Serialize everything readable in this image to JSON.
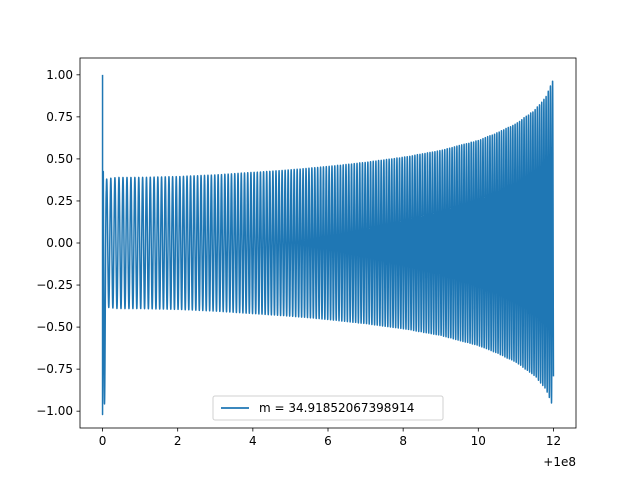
{
  "chart_data": {
    "type": "line",
    "title": "",
    "xlabel": "",
    "ylabel": "",
    "x_offset_label": "+1e8",
    "xlim": [
      -0.6,
      12.6
    ],
    "ylim": [
      -1.1,
      1.1
    ],
    "x_ticks": [
      0,
      2,
      4,
      6,
      8,
      10,
      12
    ],
    "x_tick_labels": [
      "0",
      "2",
      "4",
      "6",
      "8",
      "10",
      "12"
    ],
    "y_ticks": [
      -1.0,
      -0.75,
      -0.5,
      -0.25,
      0.0,
      0.25,
      0.5,
      0.75,
      1.0
    ],
    "y_tick_labels": [
      "−1.00",
      "−0.75",
      "−0.50",
      "−0.25",
      "0.00",
      "0.25",
      "0.50",
      "0.75",
      "1.00"
    ],
    "grid": false,
    "legend_position": "lower-center",
    "series": [
      {
        "name": "m = 34.91852067398914",
        "color": "#1f77b4",
        "description_points": {
          "x": [
            0.0,
            0.05,
            0.1,
            0.2,
            0.4,
            1,
            2,
            3,
            4,
            5,
            6,
            7,
            8,
            9,
            10,
            10.5,
            11,
            11.5,
            11.8,
            12.0
          ],
          "envelope": [
            1.0,
            1.0,
            0.38,
            0.385,
            0.39,
            0.39,
            0.395,
            0.405,
            0.42,
            0.435,
            0.455,
            0.48,
            0.51,
            0.55,
            0.61,
            0.655,
            0.71,
            0.79,
            0.87,
            0.98
          ]
        }
      }
    ]
  }
}
